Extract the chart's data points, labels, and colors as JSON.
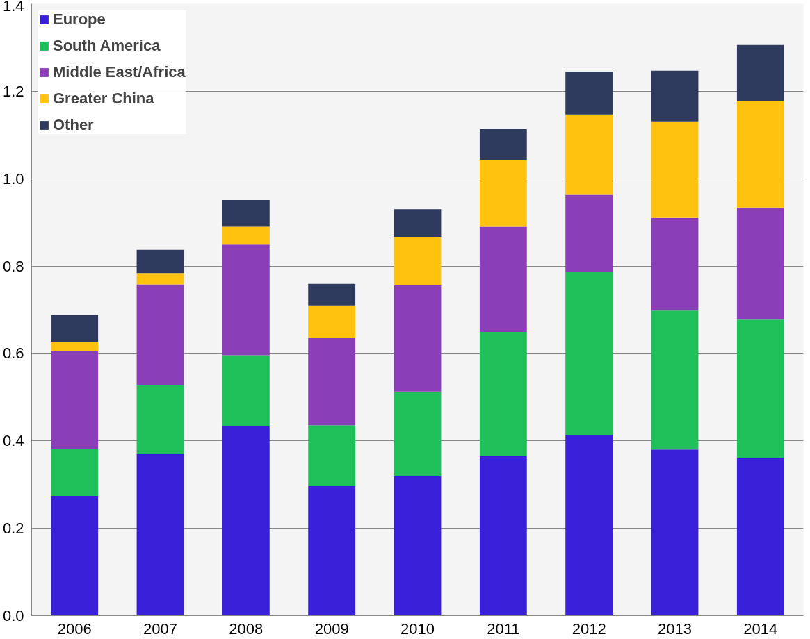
{
  "chart_data": {
    "type": "bar",
    "stacked": true,
    "categories": [
      "2006",
      "2007",
      "2008",
      "2009",
      "2010",
      "2011",
      "2012",
      "2013",
      "2014"
    ],
    "series": [
      {
        "name": "Europe",
        "color": "#3a1fd9",
        "values": [
          0.274,
          0.37,
          0.433,
          0.297,
          0.319,
          0.365,
          0.414,
          0.38,
          0.36
        ]
      },
      {
        "name": "South America",
        "color": "#1fbf5a",
        "values": [
          0.107,
          0.157,
          0.163,
          0.139,
          0.194,
          0.284,
          0.372,
          0.318,
          0.319
        ]
      },
      {
        "name": "Middle East/Africa",
        "color": "#8a3fb8",
        "values": [
          0.225,
          0.231,
          0.253,
          0.2,
          0.243,
          0.241,
          0.177,
          0.212,
          0.255
        ]
      },
      {
        "name": "Greater China",
        "color": "#ffc20e",
        "values": [
          0.021,
          0.026,
          0.041,
          0.074,
          0.111,
          0.152,
          0.184,
          0.221,
          0.243
        ]
      },
      {
        "name": "Other",
        "color": "#2e3b5e",
        "values": [
          0.061,
          0.053,
          0.061,
          0.049,
          0.063,
          0.071,
          0.098,
          0.116,
          0.129
        ]
      }
    ],
    "ylim": [
      0,
      1.4
    ],
    "yticks": [
      {
        "value": 0,
        "label": "0.0"
      },
      {
        "value": 0.2,
        "label": "0.2"
      },
      {
        "value": 0.4,
        "label": "0.4"
      },
      {
        "value": 0.6,
        "label": "0.6"
      },
      {
        "value": 0.8,
        "label": "0.8"
      },
      {
        "value": 1.0,
        "label": "1.0"
      },
      {
        "value": 1.2,
        "label": "1.2"
      },
      {
        "value": 1.4,
        "label": "1.4"
      }
    ],
    "grid": "y",
    "legend": "top left"
  }
}
